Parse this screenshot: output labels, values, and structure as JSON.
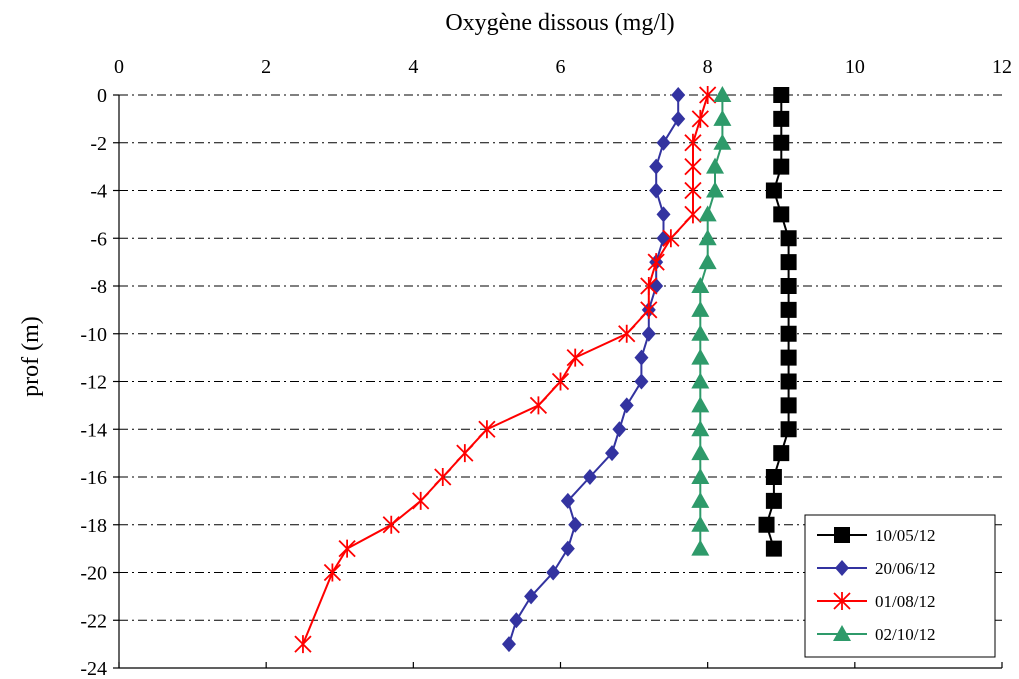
{
  "chart_data": {
    "type": "scatter",
    "title": "",
    "xlabel": "Oxygène dissous (mg/l)",
    "ylabel": "prof (m)",
    "xlim": [
      0,
      12
    ],
    "ylim": [
      -24,
      0
    ],
    "x_ticks": [
      0,
      2,
      4,
      6,
      8,
      10,
      12
    ],
    "y_ticks": [
      0,
      -2,
      -4,
      -6,
      -8,
      -10,
      -12,
      -14,
      -16,
      -18,
      -20,
      -22,
      -24
    ],
    "x_tick_labels": [
      "0",
      "2",
      "4",
      "6",
      "8",
      "10",
      "12"
    ],
    "y_tick_labels": [
      "0",
      "-2",
      "-4",
      "-6",
      "-8",
      "-10",
      "-12",
      "-14",
      "-16",
      "-18",
      "-20",
      "-22",
      "-24"
    ],
    "x_axis_position": "top",
    "grid": "horizontal dash-dot",
    "legend_position": "bottom-right",
    "series": [
      {
        "name": "10/05/12",
        "color": "#000000",
        "marker": "square",
        "points": [
          [
            9.0,
            0
          ],
          [
            9.0,
            -1
          ],
          [
            9.0,
            -2
          ],
          [
            9.0,
            -3
          ],
          [
            8.9,
            -4
          ],
          [
            9.0,
            -5
          ],
          [
            9.1,
            -6
          ],
          [
            9.1,
            -7
          ],
          [
            9.1,
            -8
          ],
          [
            9.1,
            -9
          ],
          [
            9.1,
            -10
          ],
          [
            9.1,
            -11
          ],
          [
            9.1,
            -12
          ],
          [
            9.1,
            -13
          ],
          [
            9.1,
            -14
          ],
          [
            9.0,
            -15
          ],
          [
            8.9,
            -16
          ],
          [
            8.9,
            -17
          ],
          [
            8.8,
            -18
          ],
          [
            8.9,
            -19
          ]
        ]
      },
      {
        "name": "20/06/12",
        "color": "#3333a0",
        "marker": "diamond",
        "points": [
          [
            7.6,
            0
          ],
          [
            7.6,
            -1
          ],
          [
            7.4,
            -2
          ],
          [
            7.3,
            -3
          ],
          [
            7.3,
            -4
          ],
          [
            7.4,
            -5
          ],
          [
            7.4,
            -6
          ],
          [
            7.3,
            -7
          ],
          [
            7.3,
            -8
          ],
          [
            7.2,
            -9
          ],
          [
            7.2,
            -10
          ],
          [
            7.1,
            -11
          ],
          [
            7.1,
            -12
          ],
          [
            6.9,
            -13
          ],
          [
            6.8,
            -14
          ],
          [
            6.7,
            -15
          ],
          [
            6.4,
            -16
          ],
          [
            6.1,
            -17
          ],
          [
            6.2,
            -18
          ],
          [
            6.1,
            -19
          ],
          [
            5.9,
            -20
          ],
          [
            5.6,
            -21
          ],
          [
            5.4,
            -22
          ],
          [
            5.3,
            -23
          ]
        ]
      },
      {
        "name": "01/08/12",
        "color": "#ff0000",
        "marker": "star",
        "points": [
          [
            8.0,
            0
          ],
          [
            7.9,
            -1
          ],
          [
            7.8,
            -2
          ],
          [
            7.8,
            -3
          ],
          [
            7.8,
            -4
          ],
          [
            7.8,
            -5
          ],
          [
            7.5,
            -6
          ],
          [
            7.3,
            -7
          ],
          [
            7.2,
            -8
          ],
          [
            7.2,
            -9
          ],
          [
            6.9,
            -10
          ],
          [
            6.2,
            -11
          ],
          [
            6.0,
            -12
          ],
          [
            5.7,
            -13
          ],
          [
            5.0,
            -14
          ],
          [
            4.7,
            -15
          ],
          [
            4.4,
            -16
          ],
          [
            4.1,
            -17
          ],
          [
            3.7,
            -18
          ],
          [
            3.1,
            -19
          ],
          [
            2.9,
            -20
          ],
          [
            2.5,
            -23
          ]
        ]
      },
      {
        "name": "02/10/12",
        "color": "#2e9a6a",
        "marker": "triangle",
        "points": [
          [
            8.2,
            0
          ],
          [
            8.2,
            -1
          ],
          [
            8.2,
            -2
          ],
          [
            8.1,
            -3
          ],
          [
            8.1,
            -4
          ],
          [
            8.0,
            -5
          ],
          [
            8.0,
            -6
          ],
          [
            8.0,
            -7
          ],
          [
            7.9,
            -8
          ],
          [
            7.9,
            -9
          ],
          [
            7.9,
            -10
          ],
          [
            7.9,
            -11
          ],
          [
            7.9,
            -12
          ],
          [
            7.9,
            -13
          ],
          [
            7.9,
            -14
          ],
          [
            7.9,
            -15
          ],
          [
            7.9,
            -16
          ],
          [
            7.9,
            -17
          ],
          [
            7.9,
            -18
          ],
          [
            7.9,
            -19
          ]
        ]
      }
    ]
  }
}
